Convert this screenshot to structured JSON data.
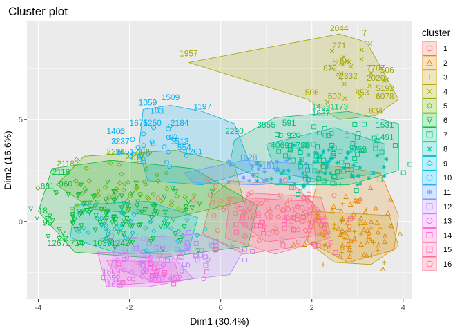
{
  "chart_data": {
    "type": "scatter",
    "title": "Cluster plot",
    "xlabel": "Dim1 (30.4%)",
    "ylabel": "Dim2 (16.6%)",
    "xlim": [
      -4.25,
      4.2
    ],
    "ylim": [
      -3.8,
      9.85
    ],
    "x_ticks": [
      -4,
      -2,
      0,
      2,
      4
    ],
    "x_tick_labels": [
      "-4",
      "-2",
      "0",
      "2",
      "4"
    ],
    "y_ticks": [
      0,
      5
    ],
    "y_tick_labels": [
      "0",
      "5"
    ],
    "grid": true,
    "panel_background": "#ebebeb",
    "legend": {
      "title": "cluster",
      "position": "right",
      "entries": [
        "1",
        "2",
        "3",
        "4",
        "5",
        "6",
        "7",
        "8",
        "9",
        "10",
        "11",
        "12",
        "13",
        "14",
        "15",
        "16"
      ],
      "colors": [
        "#F8766D",
        "#E58700",
        "#C99800",
        "#A3A500",
        "#6BB100",
        "#00BA38",
        "#00BF7D",
        "#00C0AF",
        "#00BCD8",
        "#00B0F6",
        "#619CFF",
        "#B983FF",
        "#E76BF3",
        "#FD61D1",
        "#FF67A4",
        "#FF6C91"
      ]
    },
    "clusters": [
      {
        "name": "1",
        "color": "#F8766D",
        "center": [
          1.0,
          0.5
        ],
        "spread": [
          0.9,
          0.7
        ],
        "n": 60,
        "hull": [
          [
            0.2,
            2.0
          ],
          [
            1.6,
            1.8
          ],
          [
            2.2,
            0.5
          ],
          [
            1.8,
            -1.2
          ],
          [
            0.5,
            -1.6
          ],
          [
            -0.4,
            -0.6
          ],
          [
            -0.2,
            1.2
          ]
        ]
      },
      {
        "name": "2",
        "color": "#E58700",
        "center": [
          2.9,
          -0.3
        ],
        "spread": [
          0.5,
          0.8
        ],
        "n": 60,
        "hull": [
          [
            2.2,
            2.8
          ],
          [
            3.5,
            2.4
          ],
          [
            3.9,
            0.3
          ],
          [
            3.8,
            -1.4
          ],
          [
            2.8,
            -2.0
          ],
          [
            2.1,
            -1.2
          ],
          [
            2.0,
            0.8
          ]
        ]
      },
      {
        "name": "3",
        "color": "#C99800",
        "center": [
          2.8,
          -0.5
        ],
        "spread": [
          0.5,
          0.7
        ],
        "n": 40,
        "hull": [
          [
            2.0,
            0.5
          ],
          [
            3.7,
            0.3
          ],
          [
            3.9,
            -1.2
          ],
          [
            3.3,
            -2.1
          ],
          [
            2.5,
            -2.0
          ],
          [
            1.9,
            -1.0
          ]
        ]
      },
      {
        "name": "4",
        "color": "#A3A500",
        "center": [
          2.9,
          7.0
        ],
        "spread": [
          0.35,
          0.7
        ],
        "n": 22,
        "hull": [
          [
            -0.7,
            7.8
          ],
          [
            2.6,
            9.2
          ],
          [
            3.2,
            8.8
          ],
          [
            3.9,
            6.0
          ],
          [
            3.4,
            5.2
          ],
          [
            2.6,
            5.0
          ],
          [
            1.9,
            6.0
          ]
        ],
        "labels": [
          [
            2.6,
            9.35,
            "2044"
          ],
          [
            3.15,
            9.1,
            "7"
          ],
          [
            -0.7,
            8.1,
            "1957"
          ],
          [
            2.6,
            8.5,
            "271"
          ],
          [
            2.6,
            7.7,
            "809"
          ],
          [
            2.4,
            7.4,
            "872"
          ],
          [
            2.8,
            7.0,
            "2332"
          ],
          [
            3.4,
            7.4,
            "7707"
          ],
          [
            3.65,
            7.3,
            "506"
          ],
          [
            3.4,
            6.9,
            "2020"
          ],
          [
            3.6,
            6.4,
            "5192"
          ],
          [
            2.0,
            6.2,
            "506"
          ],
          [
            2.5,
            6.0,
            "502"
          ],
          [
            3.1,
            6.2,
            "853"
          ],
          [
            3.6,
            6.0,
            "6078"
          ],
          [
            3.4,
            5.3,
            "834"
          ]
        ]
      },
      {
        "name": "5",
        "color": "#6BB100",
        "center": [
          -2.0,
          1.5
        ],
        "spread": [
          0.8,
          0.6
        ],
        "n": 55,
        "hull": [
          [
            -3.0,
            3.2
          ],
          [
            -1.0,
            3.5
          ],
          [
            0.3,
            2.8
          ],
          [
            0.5,
            1.0
          ],
          [
            -1.0,
            0.2
          ],
          [
            -2.8,
            0.6
          ],
          [
            -3.6,
            1.8
          ]
        ],
        "labels": [
          [
            -1.9,
            3.0,
            "2139"
          ],
          [
            -2.3,
            3.3,
            "2291"
          ],
          [
            -1.7,
            3.3,
            "2105"
          ],
          [
            -3.4,
            2.7,
            "2118"
          ]
        ]
      },
      {
        "name": "6",
        "color": "#00BA38",
        "center": [
          -2.4,
          0.2
        ],
        "spread": [
          0.9,
          0.8
        ],
        "n": 120,
        "hull": [
          [
            -3.7,
            2.6
          ],
          [
            -2.4,
            3.0
          ],
          [
            -0.6,
            2.6
          ],
          [
            0.8,
            0.8
          ],
          [
            0.6,
            -1.2
          ],
          [
            -1.4,
            -1.8
          ],
          [
            -3.2,
            -1.5
          ],
          [
            -4.0,
            0.5
          ]
        ],
        "labels": [
          [
            -3.8,
            1.6,
            "881"
          ],
          [
            -3.4,
            1.7,
            "960"
          ],
          [
            -3.9,
            0.4,
            "18"
          ],
          [
            -3.8,
            -0.2,
            "95"
          ],
          [
            -3.6,
            -1.2,
            "1267"
          ],
          [
            -3.2,
            -1.2,
            "1714"
          ],
          [
            -2.6,
            -1.2,
            "1039"
          ],
          [
            -2.2,
            -1.2,
            "1242"
          ],
          [
            -3.5,
            2.3,
            "2118"
          ]
        ]
      },
      {
        "name": "7",
        "color": "#00BF7D",
        "center": [
          2.4,
          3.2
        ],
        "spread": [
          0.7,
          0.8
        ],
        "n": 80,
        "hull": [
          [
            0.3,
            4.0
          ],
          [
            1.2,
            5.1
          ],
          [
            2.8,
            5.4
          ],
          [
            3.9,
            4.8
          ],
          [
            3.9,
            2.5
          ],
          [
            2.8,
            1.8
          ],
          [
            1.2,
            1.8
          ],
          [
            0.2,
            2.8
          ]
        ],
        "labels": [
          [
            2.2,
            5.5,
            "1453"
          ],
          [
            2.6,
            5.5,
            "1173"
          ],
          [
            2.2,
            5.2,
            "1837"
          ],
          [
            3.6,
            4.6,
            "1531"
          ],
          [
            3.6,
            4.0,
            "1491"
          ],
          [
            1.5,
            4.7,
            "591"
          ],
          [
            1.0,
            4.6,
            "3555"
          ],
          [
            0.3,
            4.3,
            "2290"
          ],
          [
            1.6,
            4.1,
            "920"
          ],
          [
            1.3,
            3.6,
            "4069"
          ],
          [
            1.8,
            3.6,
            "788"
          ],
          [
            3.0,
            3.4,
            "1752"
          ]
        ]
      },
      {
        "name": "8",
        "color": "#00C0AF",
        "center": [
          2.3,
          2.8
        ],
        "spread": [
          0.6,
          0.6
        ],
        "n": 60,
        "hull": [
          [
            1.0,
            3.8
          ],
          [
            2.5,
            4.6
          ],
          [
            3.6,
            3.8
          ],
          [
            3.6,
            2.4
          ],
          [
            2.3,
            2.0
          ],
          [
            1.2,
            2.4
          ]
        ]
      },
      {
        "name": "9",
        "color": "#00BCD8",
        "center": [
          -1.9,
          -0.3
        ],
        "spread": [
          0.7,
          0.6
        ],
        "n": 40,
        "hull": [
          [
            -3.2,
            0.8
          ],
          [
            -1.6,
            1.0
          ],
          [
            -0.5,
            0.2
          ],
          [
            -0.7,
            -1.4
          ],
          [
            -2.2,
            -1.6
          ],
          [
            -3.3,
            -0.8
          ]
        ]
      },
      {
        "name": "10",
        "color": "#00B0F6",
        "center": [
          -1.4,
          3.8
        ],
        "spread": [
          0.45,
          0.7
        ],
        "n": 26,
        "hull": [
          [
            -1.7,
            5.5
          ],
          [
            -1.1,
            5.7
          ],
          [
            -0.4,
            5.4
          ],
          [
            0.3,
            4.8
          ],
          [
            0.7,
            2.5
          ],
          [
            -0.4,
            1.8
          ],
          [
            -1.6,
            2.0
          ],
          [
            -1.8,
            3.5
          ]
        ],
        "labels": [
          [
            -1.6,
            5.7,
            "1059"
          ],
          [
            -1.1,
            5.95,
            "1509"
          ],
          [
            -0.4,
            5.5,
            "1197"
          ],
          [
            -1.4,
            5.3,
            "103"
          ],
          [
            -1.8,
            4.7,
            "1675"
          ],
          [
            -1.5,
            4.7,
            "1250"
          ],
          [
            -0.9,
            4.7,
            "2184"
          ],
          [
            -2.3,
            4.3,
            "1403"
          ],
          [
            -0.9,
            3.8,
            "1513"
          ],
          [
            -0.8,
            3.5,
            "554"
          ],
          [
            -0.6,
            3.3,
            "1261"
          ],
          [
            -2.1,
            3.3,
            "1651"
          ],
          [
            -1.7,
            3.2,
            "776"
          ],
          [
            -2.2,
            3.8,
            "2237"
          ]
        ]
      },
      {
        "name": "11",
        "color": "#619CFF",
        "center": [
          1.0,
          2.4
        ],
        "spread": [
          0.6,
          0.4
        ],
        "n": 22,
        "hull": [
          [
            -0.8,
            2.4
          ],
          [
            0.5,
            3.0
          ],
          [
            2.0,
            2.8
          ],
          [
            2.2,
            2.0
          ],
          [
            0.8,
            1.8
          ],
          [
            -0.6,
            1.9
          ]
        ],
        "labels": [
          [
            0.6,
            3.0,
            "1628"
          ],
          [
            1.1,
            2.6,
            "1811"
          ]
        ]
      },
      {
        "name": "12",
        "color": "#B983FF",
        "center": [
          -0.8,
          -1.5
        ],
        "spread": [
          0.8,
          0.5
        ],
        "n": 40,
        "hull": [
          [
            -2.3,
            -0.9
          ],
          [
            -0.5,
            -0.6
          ],
          [
            0.5,
            -1.4
          ],
          [
            0.2,
            -2.6
          ],
          [
            -1.4,
            -3.0
          ],
          [
            -2.4,
            -2.2
          ]
        ]
      },
      {
        "name": "13",
        "color": "#E76BF3",
        "center": [
          -1.5,
          -2.2
        ],
        "spread": [
          0.6,
          0.45
        ],
        "n": 32,
        "hull": [
          [
            -2.7,
            -1.5
          ],
          [
            -1.1,
            -1.6
          ],
          [
            -0.6,
            -2.8
          ],
          [
            -1.6,
            -3.2
          ],
          [
            -2.5,
            -3.2
          ]
        ],
        "labels": [
          [
            -2.4,
            -2.6,
            "1869"
          ],
          [
            -2.4,
            -2.9,
            "1352"
          ],
          [
            -2.3,
            -3.2,
            "1698"
          ],
          [
            -1.4,
            -2.9,
            "1257"
          ],
          [
            -1.0,
            -2.9,
            "452"
          ]
        ]
      },
      {
        "name": "14",
        "color": "#FD61D1",
        "center": [
          -1.6,
          -2.4
        ],
        "spread": [
          0.5,
          0.4
        ],
        "n": 20,
        "hull": [
          [
            -2.5,
            -1.9
          ],
          [
            -1.0,
            -2.0
          ],
          [
            -0.9,
            -2.9
          ],
          [
            -2.2,
            -3.1
          ]
        ]
      },
      {
        "name": "15",
        "color": "#FF67A4",
        "center": [
          1.3,
          -0.2
        ],
        "spread": [
          0.8,
          0.6
        ],
        "n": 40,
        "hull": [
          [
            0.2,
            1.2
          ],
          [
            2.0,
            1.0
          ],
          [
            2.4,
            -0.8
          ],
          [
            1.2,
            -1.6
          ],
          [
            0.1,
            -0.8
          ]
        ]
      },
      {
        "name": "16",
        "color": "#FF6C91",
        "center": [
          1.5,
          0.2
        ],
        "spread": [
          0.7,
          0.5
        ],
        "n": 30,
        "hull": [
          [
            0.6,
            1.4
          ],
          [
            2.2,
            1.2
          ],
          [
            2.4,
            -0.6
          ],
          [
            1.0,
            -1.0
          ],
          [
            0.4,
            0.0
          ]
        ]
      }
    ]
  }
}
